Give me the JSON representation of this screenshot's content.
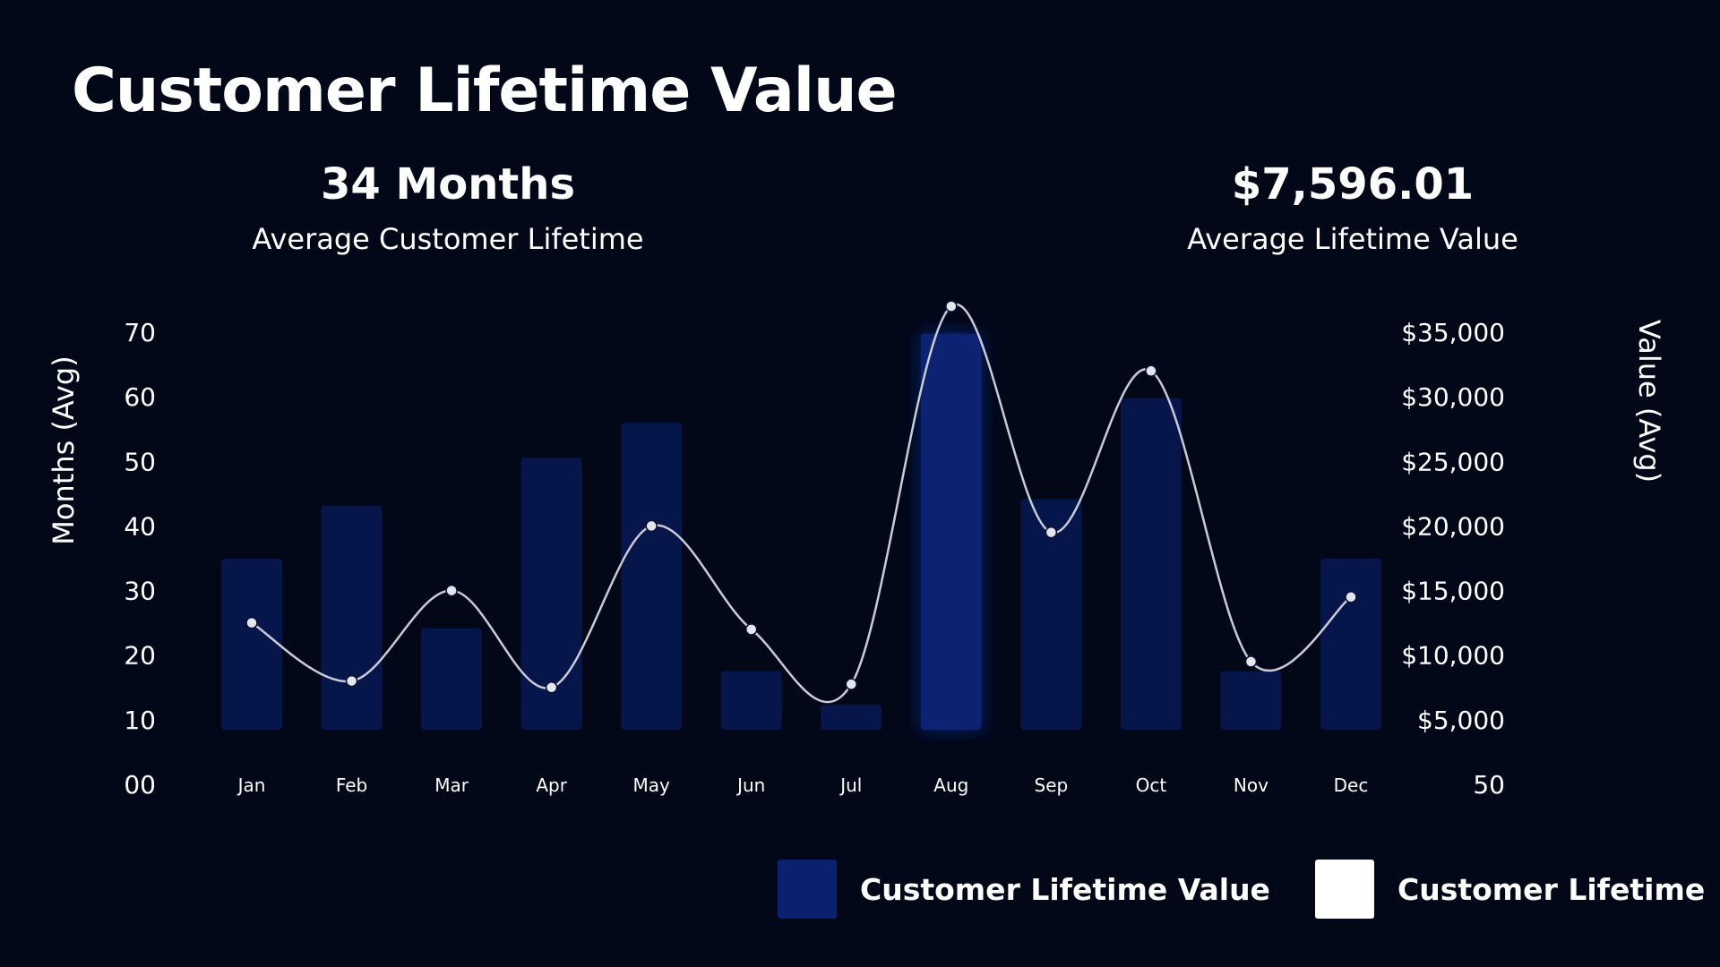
{
  "header": {
    "title": "Customer Lifetime Value"
  },
  "kpis": {
    "lifetime": {
      "value": "34 Months",
      "label": "Average Customer Lifetime"
    },
    "value": {
      "value": "$7,596.01",
      "label": "Average Lifetime Value"
    }
  },
  "colors": {
    "background": "#020818",
    "bar": "#06154a",
    "bar_highlight": "#0a2170",
    "line": "#c9cbd6",
    "legend_bar": "#0a2170",
    "legend_line": "#ffffff"
  },
  "chart_data": {
    "type": "bar",
    "title": "Customer Lifetime Value",
    "categories": [
      "Jan",
      "Feb",
      "Mar",
      "Apr",
      "May",
      "Jun",
      "Jul",
      "Aug",
      "Sep",
      "Oct",
      "Nov",
      "Dec"
    ],
    "series": [
      {
        "name": "Customer Lifetime Value",
        "type": "bar",
        "axis": "right",
        "values": [
          17500,
          21600,
          12100,
          25300,
          28000,
          8800,
          6200,
          34900,
          22100,
          29900,
          8800,
          17500
        ],
        "highlight_index": 7
      },
      {
        "name": "Customer Lifetime",
        "type": "line",
        "axis": "left",
        "values": [
          25,
          16,
          30,
          15,
          40,
          24,
          15.5,
          74,
          39,
          64,
          19,
          29
        ]
      }
    ],
    "y_left": {
      "label": "Months (Avg)",
      "ticks": [
        "00",
        "10",
        "20",
        "30",
        "40",
        "50",
        "60",
        "70"
      ],
      "range": [
        0,
        70
      ]
    },
    "y_right": {
      "label": "Value (Avg)",
      "ticks": [
        "50",
        "$5,000",
        "$10,000",
        "$15,000",
        "$20,000",
        "$25,000",
        "$30,000",
        "$35,000"
      ],
      "range": [
        50,
        35000
      ]
    },
    "legend": [
      {
        "label": "Customer Lifetime Value",
        "swatch": "bar"
      },
      {
        "label": "Customer Lifetime",
        "swatch": "line"
      }
    ],
    "legend_position": "bottom-right"
  }
}
